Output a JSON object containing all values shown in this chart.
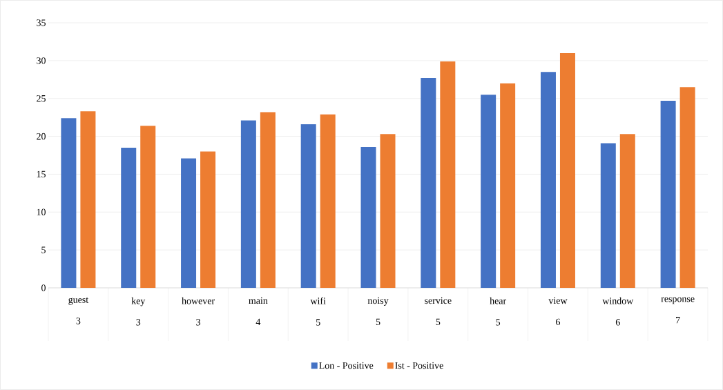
{
  "chart_data": {
    "type": "bar",
    "categories": [
      "guest\n3",
      "key\n3",
      "however\n3",
      "main\n4",
      "wifi\n5",
      "noisy\n5",
      "service\n5",
      "hear\n5",
      "view\n6",
      "window\n6",
      "response\n7"
    ],
    "series": [
      {
        "name": "Lon - Positive",
        "color": "#4472c4",
        "values": [
          22.4,
          18.5,
          17.1,
          22.1,
          21.6,
          18.6,
          27.7,
          25.5,
          28.5,
          19.1,
          24.7
        ]
      },
      {
        "name": "Ist - Positive",
        "color": "#ed7d31",
        "values": [
          23.3,
          21.4,
          18.0,
          23.2,
          22.9,
          20.3,
          29.9,
          27.0,
          31.0,
          20.3,
          26.5
        ]
      }
    ],
    "ylim": [
      0,
      35
    ],
    "yticks": [
      0,
      5,
      10,
      15,
      20,
      25,
      30,
      35
    ],
    "grid": "y",
    "legend": "bottom"
  }
}
